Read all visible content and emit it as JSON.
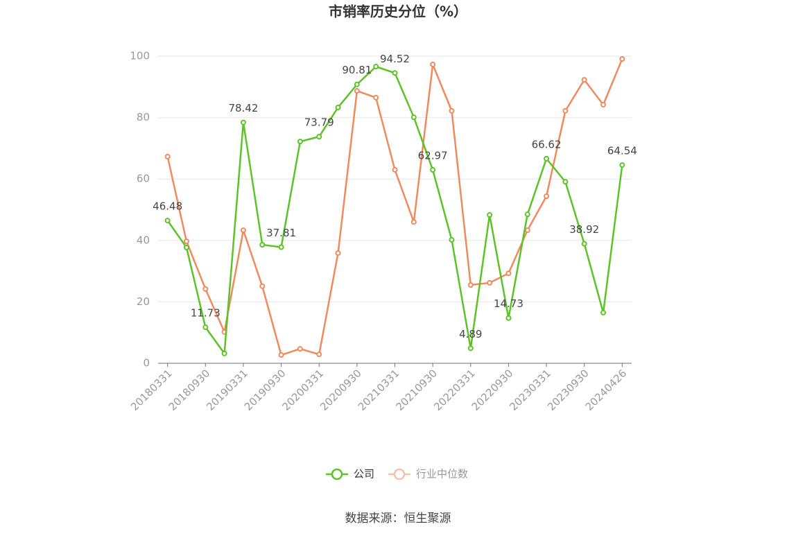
{
  "chart_data": {
    "type": "line",
    "title": "市销率历史分位（%）",
    "source": "数据来源：恒生聚源",
    "categories": [
      "20180331",
      null,
      "20180930",
      null,
      "20190331",
      null,
      "20190930",
      null,
      "20200331",
      null,
      "20200930",
      null,
      "20210331",
      null,
      "20210930",
      null,
      "20220331",
      null,
      "20220930",
      null,
      "20230331",
      null,
      "20230930",
      null,
      "20240426"
    ],
    "series": [
      {
        "name": "公司",
        "color": "#5bc424",
        "values": [
          46.48,
          37.7,
          11.73,
          3.2,
          78.42,
          38.6,
          37.81,
          72.2,
          73.79,
          83.3,
          90.81,
          96.6,
          94.52,
          80.1,
          62.97,
          40.2,
          4.89,
          48.3,
          14.73,
          48.5,
          66.62,
          59.1,
          38.92,
          16.5,
          64.54
        ]
      },
      {
        "name": "行业中位数",
        "color": "#f08a5d",
        "values": [
          67.3,
          39.7,
          24.2,
          10.2,
          43.3,
          25.1,
          2.7,
          4.7,
          2.9,
          35.9,
          88.7,
          86.5,
          63.0,
          46.0,
          97.3,
          82.2,
          25.5,
          26.2,
          29.3,
          43.3,
          54.4,
          82.2,
          92.3,
          84.2,
          99.1
        ]
      }
    ],
    "ylim": [
      0,
      100
    ],
    "yticks": [
      0,
      20,
      40,
      60,
      80,
      100
    ],
    "grid": true
  }
}
